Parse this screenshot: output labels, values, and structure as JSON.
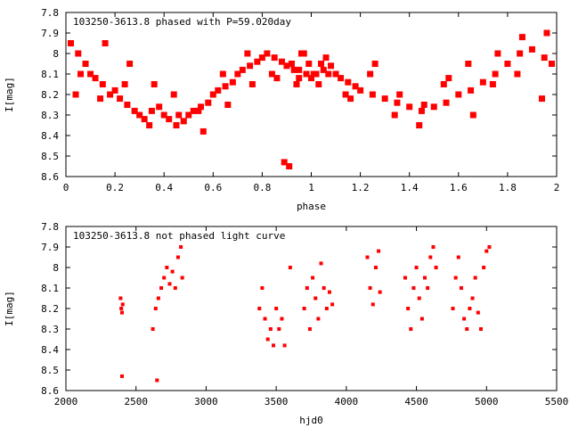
{
  "chart_data": [
    {
      "type": "scatter",
      "title": "103250-3613.8 phased with P=59.020day",
      "xlabel": "phase",
      "ylabel": "I[mag]",
      "xlim": [
        0,
        2
      ],
      "ylim": [
        7.8,
        8.6
      ],
      "y_inverted": true,
      "xticks": [
        "0",
        "0.2",
        "0.4",
        "0.6",
        "0.8",
        "1",
        "1.2",
        "1.4",
        "1.6",
        "1.8",
        "2"
      ],
      "yticks": [
        "7.8",
        "7.9",
        "8",
        "8.1",
        "8.2",
        "8.3",
        "8.4",
        "8.5",
        "8.6"
      ],
      "grid": false,
      "marker_color": "#ff0000",
      "x": [
        0.02,
        0.05,
        0.08,
        0.1,
        0.12,
        0.15,
        0.18,
        0.2,
        0.22,
        0.25,
        0.28,
        0.3,
        0.32,
        0.35,
        0.38,
        0.4,
        0.42,
        0.45,
        0.48,
        0.5,
        0.52,
        0.55,
        0.58,
        0.6,
        0.62,
        0.65,
        0.68,
        0.7,
        0.72,
        0.75,
        0.78,
        0.8,
        0.82,
        0.85,
        0.88,
        0.9,
        0.92,
        0.95,
        0.98,
        1.0,
        1.02,
        1.05,
        1.08,
        1.1,
        1.12,
        1.15,
        1.18,
        1.2,
        1.25,
        1.3,
        1.35,
        1.4,
        1.45,
        1.5,
        1.55,
        1.6,
        1.65,
        1.7,
        1.75,
        1.8,
        1.85,
        1.9,
        1.95,
        1.98,
        0.04,
        0.14,
        0.24,
        0.34,
        0.44,
        0.54,
        0.64,
        0.74,
        0.84,
        0.94,
        1.04,
        1.14,
        1.24,
        1.34,
        1.44,
        1.54,
        1.64,
        1.74,
        1.84,
        1.94,
        0.06,
        0.16,
        0.26,
        0.36,
        0.46,
        0.56,
        0.66,
        0.76,
        0.86,
        0.96,
        1.06,
        1.16,
        1.26,
        1.36,
        1.46,
        1.56,
        1.66,
        1.76,
        1.86,
        1.96,
        0.97,
        0.99,
        1.01,
        1.03,
        0.93,
        1.07,
        0.89,
        0.91,
        0.95
      ],
      "y": [
        7.95,
        8.0,
        8.05,
        8.1,
        8.12,
        8.15,
        8.2,
        8.18,
        8.22,
        8.25,
        8.28,
        8.3,
        8.32,
        8.28,
        8.26,
        8.3,
        8.32,
        8.35,
        8.33,
        8.3,
        8.28,
        8.26,
        8.24,
        8.2,
        8.18,
        8.16,
        8.14,
        8.1,
        8.08,
        8.06,
        8.04,
        8.02,
        8.0,
        8.02,
        8.04,
        8.06,
        8.05,
        8.08,
        8.1,
        8.12,
        8.1,
        8.08,
        8.06,
        8.1,
        8.12,
        8.14,
        8.16,
        8.18,
        8.2,
        8.22,
        8.24,
        8.26,
        8.28,
        8.26,
        8.24,
        8.2,
        8.18,
        8.14,
        8.1,
        8.05,
        8.0,
        7.98,
        8.02,
        8.05,
        8.2,
        8.22,
        8.15,
        8.35,
        8.2,
        8.28,
        8.1,
        8.0,
        8.1,
        8.15,
        8.05,
        8.2,
        8.1,
        8.3,
        8.35,
        8.15,
        8.05,
        8.15,
        8.1,
        8.22,
        8.1,
        7.95,
        8.05,
        8.15,
        8.3,
        8.38,
        8.25,
        8.15,
        8.12,
        8.0,
        8.02,
        8.22,
        8.05,
        8.2,
        8.25,
        8.12,
        8.3,
        8.0,
        7.92,
        7.9,
        8.0,
        8.05,
        8.1,
        8.15,
        8.08,
        8.1,
        8.53,
        8.55,
        8.12
      ]
    },
    {
      "type": "scatter",
      "title": "103250-3613.8 not phased light curve",
      "xlabel": "hjd0",
      "ylabel": "I[mag]",
      "xlim": [
        2000,
        5500
      ],
      "ylim": [
        7.8,
        8.6
      ],
      "y_inverted": true,
      "xticks": [
        "2000",
        "2500",
        "3000",
        "3500",
        "4000",
        "4500",
        "5000",
        "5500"
      ],
      "yticks": [
        "7.8",
        "7.9",
        "8",
        "8.1",
        "8.2",
        "8.3",
        "8.4",
        "8.5",
        "8.6"
      ],
      "grid": false,
      "marker_color": "#ff0000",
      "x": [
        2390,
        2395,
        2400,
        2405,
        2620,
        2640,
        2660,
        2680,
        2700,
        2720,
        2740,
        2760,
        2780,
        2800,
        2820,
        2830,
        2650,
        3380,
        3400,
        3420,
        3440,
        3460,
        3480,
        3500,
        3520,
        3540,
        3560,
        3600,
        3700,
        3720,
        3740,
        3760,
        3780,
        3800,
        3820,
        3840,
        3860,
        3880,
        3900,
        4150,
        4170,
        4190,
        4210,
        4230,
        4240,
        4420,
        4440,
        4460,
        4480,
        4500,
        4520,
        4540,
        4560,
        4580,
        4600,
        4620,
        4640,
        4760,
        4780,
        4800,
        4820,
        4840,
        4860,
        4880,
        4900,
        4920,
        4940,
        4960,
        4980,
        5000,
        5020,
        2400
      ],
      "y": [
        8.15,
        8.2,
        8.22,
        8.18,
        8.3,
        8.2,
        8.15,
        8.1,
        8.05,
        8.0,
        8.08,
        8.02,
        8.1,
        7.95,
        7.9,
        8.05,
        8.55,
        8.2,
        8.1,
        8.25,
        8.35,
        8.3,
        8.38,
        8.2,
        8.3,
        8.25,
        8.38,
        8.0,
        8.2,
        8.1,
        8.3,
        8.05,
        8.15,
        8.25,
        7.98,
        8.1,
        8.2,
        8.12,
        8.18,
        7.95,
        8.1,
        8.18,
        8.0,
        7.92,
        8.12,
        8.05,
        8.2,
        8.3,
        8.1,
        8.0,
        8.15,
        8.25,
        8.05,
        8.1,
        7.95,
        7.9,
        8.0,
        8.2,
        8.05,
        7.95,
        8.1,
        8.25,
        8.3,
        8.2,
        8.15,
        8.05,
        8.22,
        8.3,
        8.0,
        7.92,
        7.9,
        8.53
      ]
    }
  ]
}
